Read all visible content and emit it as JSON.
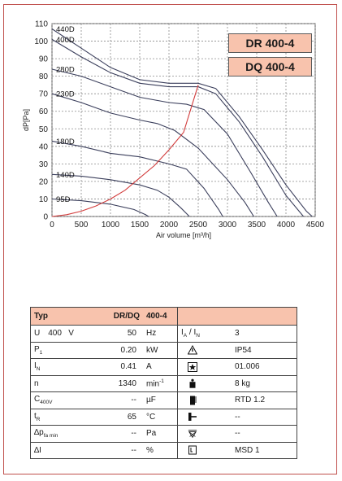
{
  "models": {
    "line1": "DR 400-4",
    "line2": "DQ 400-4"
  },
  "chart_data": {
    "type": "line",
    "xlabel": "Air volume [m³/h]",
    "ylabel": "dP[Pa]",
    "xlim": [
      0,
      4500
    ],
    "ylim": [
      0,
      110
    ],
    "xticks": [
      "0",
      "500",
      "1000",
      "1500",
      "2000",
      "2500",
      "3000",
      "3500",
      "4000",
      "4500"
    ],
    "yticks": [
      "0",
      "10",
      "20",
      "30",
      "40",
      "50",
      "60",
      "70",
      "80",
      "90",
      "100",
      "110"
    ],
    "grid": true,
    "series": [
      {
        "name": "440D",
        "color": "#3b3f5c",
        "points": [
          [
            0,
            107
          ],
          [
            500,
            96
          ],
          [
            1000,
            85
          ],
          [
            1500,
            78
          ],
          [
            2000,
            76
          ],
          [
            2500,
            76
          ],
          [
            2800,
            73
          ],
          [
            3200,
            57
          ],
          [
            3600,
            38
          ],
          [
            4000,
            18
          ],
          [
            4350,
            3
          ],
          [
            4450,
            0
          ]
        ]
      },
      {
        "name": "400D",
        "color": "#3b3f5c",
        "points": [
          [
            0,
            101
          ],
          [
            500,
            91
          ],
          [
            1000,
            82
          ],
          [
            1500,
            76
          ],
          [
            2000,
            74
          ],
          [
            2500,
            74
          ],
          [
            2800,
            70
          ],
          [
            3200,
            54
          ],
          [
            3600,
            34
          ],
          [
            4000,
            12
          ],
          [
            4300,
            0
          ]
        ]
      },
      {
        "name": "280D",
        "color": "#3b3f5c",
        "points": [
          [
            0,
            84
          ],
          [
            500,
            80
          ],
          [
            1000,
            74
          ],
          [
            1500,
            68
          ],
          [
            2000,
            65
          ],
          [
            2300,
            64
          ],
          [
            2600,
            61
          ],
          [
            3000,
            47
          ],
          [
            3400,
            25
          ],
          [
            3700,
            8
          ],
          [
            3850,
            0
          ]
        ]
      },
      {
        "name": "230D",
        "color": "#3b3f5c",
        "points": [
          [
            0,
            70
          ],
          [
            500,
            65
          ],
          [
            1000,
            59
          ],
          [
            1500,
            55
          ],
          [
            1800,
            53
          ],
          [
            2100,
            49
          ],
          [
            2500,
            39
          ],
          [
            3000,
            21
          ],
          [
            3300,
            8
          ],
          [
            3450,
            0
          ]
        ]
      },
      {
        "name": "180D",
        "color": "#3b3f5c",
        "points": [
          [
            0,
            43
          ],
          [
            500,
            40
          ],
          [
            1000,
            36
          ],
          [
            1500,
            34
          ],
          [
            2000,
            30
          ],
          [
            2300,
            27
          ],
          [
            2600,
            16
          ],
          [
            2850,
            4
          ],
          [
            2920,
            0
          ]
        ]
      },
      {
        "name": "140D",
        "color": "#3b3f5c",
        "points": [
          [
            0,
            24
          ],
          [
            500,
            23
          ],
          [
            1000,
            21
          ],
          [
            1500,
            18
          ],
          [
            1800,
            15
          ],
          [
            2000,
            11
          ],
          [
            2200,
            5
          ],
          [
            2350,
            0
          ]
        ]
      },
      {
        "name": "95D",
        "color": "#3b3f5c",
        "points": [
          [
            0,
            10
          ],
          [
            500,
            9
          ],
          [
            1000,
            7
          ],
          [
            1400,
            4
          ],
          [
            1600,
            1
          ],
          [
            1650,
            0
          ]
        ]
      },
      {
        "name": "",
        "color": "#d23c3c",
        "points": [
          [
            0,
            0
          ],
          [
            250,
            1
          ],
          [
            500,
            3
          ],
          [
            750,
            6
          ],
          [
            1000,
            10
          ],
          [
            1250,
            15
          ],
          [
            1500,
            22
          ],
          [
            1750,
            29
          ],
          [
            2000,
            38
          ],
          [
            2250,
            48
          ],
          [
            2500,
            75
          ]
        ]
      }
    ]
  },
  "table": {
    "header": [
      "Typ",
      "DR/DQ",
      "400-4",
      ""
    ],
    "rows": [
      {
        "label_main": "U",
        "label_sub": "",
        "label_extra": "400   V",
        "value": "50",
        "unit": "Hz",
        "unit_sup": "",
        "icon": "current-ratio",
        "right_main": "I",
        "right_sub": "A",
        "right_slash": " / I",
        "right_sub2": "N",
        "right_value": "3"
      },
      {
        "label_main": "P",
        "label_sub": "1",
        "label_extra": "",
        "value": "0.20",
        "unit": "kW",
        "unit_sup": "",
        "icon": "warning-triangle-icon",
        "right_main": "",
        "right_sub": "",
        "right_slash": "",
        "right_sub2": "",
        "right_value": "IP54"
      },
      {
        "label_main": "I",
        "label_sub": "N",
        "label_extra": "",
        "value": "0.41",
        "unit": "A",
        "unit_sup": "",
        "icon": "star-box-icon",
        "right_main": "",
        "right_sub": "",
        "right_slash": "",
        "right_sub2": "",
        "right_value": "01.006"
      },
      {
        "label_main": "n",
        "label_sub": "",
        "label_extra": "",
        "value": "1340",
        "unit": "min",
        "unit_sup": "-1",
        "icon": "weight-icon",
        "right_main": "",
        "right_sub": "",
        "right_slash": "",
        "right_sub2": "",
        "right_value": "8 kg"
      },
      {
        "label_main": "C",
        "label_sub": "400V",
        "label_extra": "",
        "value": "--",
        "unit": "µF",
        "unit_sup": "",
        "icon": "thermometer-icon",
        "right_main": "",
        "right_sub": "",
        "right_slash": "",
        "right_sub2": "",
        "right_value": "RTD 1.2"
      },
      {
        "label_main": "t",
        "label_sub": "R",
        "label_extra": "",
        "value": "65",
        "unit": "°C",
        "unit_sup": "",
        "icon": "capacitor-icon",
        "right_main": "",
        "right_sub": "",
        "right_slash": "",
        "right_sub2": "",
        "right_value": "--"
      },
      {
        "label_main": "∆p",
        "label_sub": "fa min",
        "label_extra": "",
        "value": "--",
        "unit": "Pa",
        "unit_sup": "",
        "icon": "filter-icon",
        "right_main": "",
        "right_sub": "",
        "right_slash": "",
        "right_sub2": "",
        "right_value": "--"
      },
      {
        "label_main": "∆I",
        "label_sub": "",
        "label_extra": "",
        "value": "--",
        "unit": "%",
        "unit_sup": "",
        "icon": "switch-icon",
        "right_main": "",
        "right_sub": "",
        "right_slash": "",
        "right_sub2": "",
        "right_value": "MSD 1"
      }
    ]
  }
}
